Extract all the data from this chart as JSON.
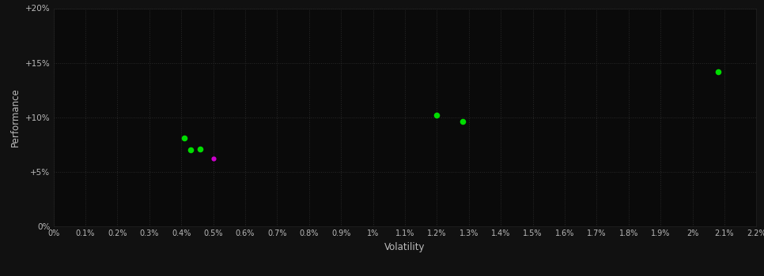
{
  "xlabel": "Volatility",
  "ylabel": "Performance",
  "background_color": "#111111",
  "plot_bg_color": "#0a0a0a",
  "grid_color": "#2a2a2a",
  "text_color": "#bbbbbb",
  "xlim": [
    0.0,
    0.022
  ],
  "ylim": [
    0.0,
    0.2
  ],
  "xticks": [
    0.0,
    0.001,
    0.002,
    0.003,
    0.004,
    0.005,
    0.006,
    0.007,
    0.008,
    0.009,
    0.01,
    0.011,
    0.012,
    0.013,
    0.014,
    0.015,
    0.016,
    0.017,
    0.018,
    0.019,
    0.02,
    0.021,
    0.022
  ],
  "xtick_labels": [
    "0%",
    "0.1%",
    "0.2%",
    "0.3%",
    "0.4%",
    "0.5%",
    "0.6%",
    "0.7%",
    "0.8%",
    "0.9%",
    "1%",
    "1.1%",
    "1.2%",
    "1.3%",
    "1.4%",
    "1.5%",
    "1.6%",
    "1.7%",
    "1.8%",
    "1.9%",
    "2%",
    "2.1%",
    "2.2%"
  ],
  "yticks": [
    0.0,
    0.05,
    0.1,
    0.15,
    0.2
  ],
  "ytick_labels": [
    "0%",
    "+5%",
    "+10%",
    "+15%",
    "+20%"
  ],
  "points_green": [
    [
      0.0041,
      0.081
    ],
    [
      0.0043,
      0.07
    ],
    [
      0.0046,
      0.071
    ],
    [
      0.012,
      0.102
    ],
    [
      0.0128,
      0.096
    ],
    [
      0.0208,
      0.142
    ]
  ],
  "points_magenta": [
    [
      0.005,
      0.062
    ]
  ],
  "point_size_green": 30,
  "point_size_magenta": 20,
  "green_color": "#00dd00",
  "magenta_color": "#cc00cc"
}
